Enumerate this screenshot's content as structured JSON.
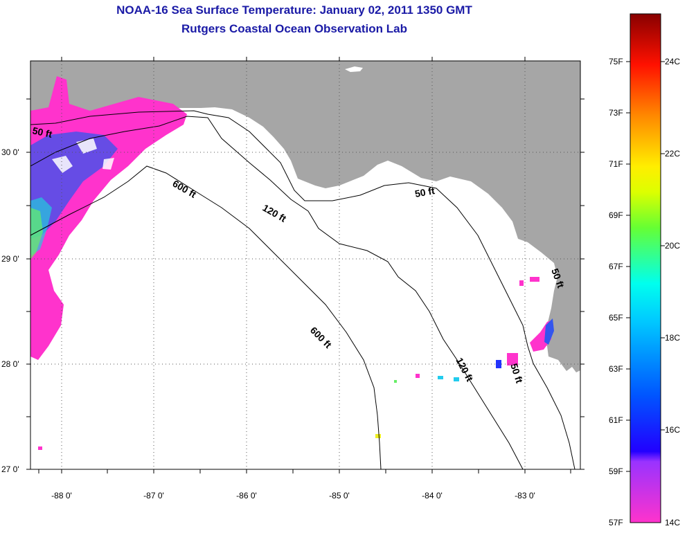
{
  "title": {
    "line1": "NOAA-16 Sea Surface Temperature:  January 02, 2011 1350 GMT",
    "line2": "Rutgers Coastal Ocean Observation Lab"
  },
  "map": {
    "lat_labels": [
      "30 0'",
      "29 0'",
      "28 0'",
      "27 0'"
    ],
    "lon_labels": [
      "-88 0'",
      "-87 0'",
      "-86 0'",
      "-85 0'",
      "-84 0'",
      "-83 0'"
    ],
    "contour_labels": [
      "50 ft",
      "600 ft",
      "120 ft",
      "50 ft",
      "600 ft",
      "120 ft",
      "50 ft",
      "50 ft"
    ],
    "colors": {
      "land": "#a6a6a6",
      "sea": "#ffffff",
      "contour": "#000000"
    }
  },
  "colorbar": {
    "fahrenheit_labels": [
      "75F",
      "73F",
      "71F",
      "69F",
      "67F",
      "65F",
      "63F",
      "61F",
      "59F",
      "57F"
    ],
    "celsius_labels": [
      "24C",
      "22C",
      "20C",
      "18C",
      "16C",
      "14C"
    ]
  }
}
